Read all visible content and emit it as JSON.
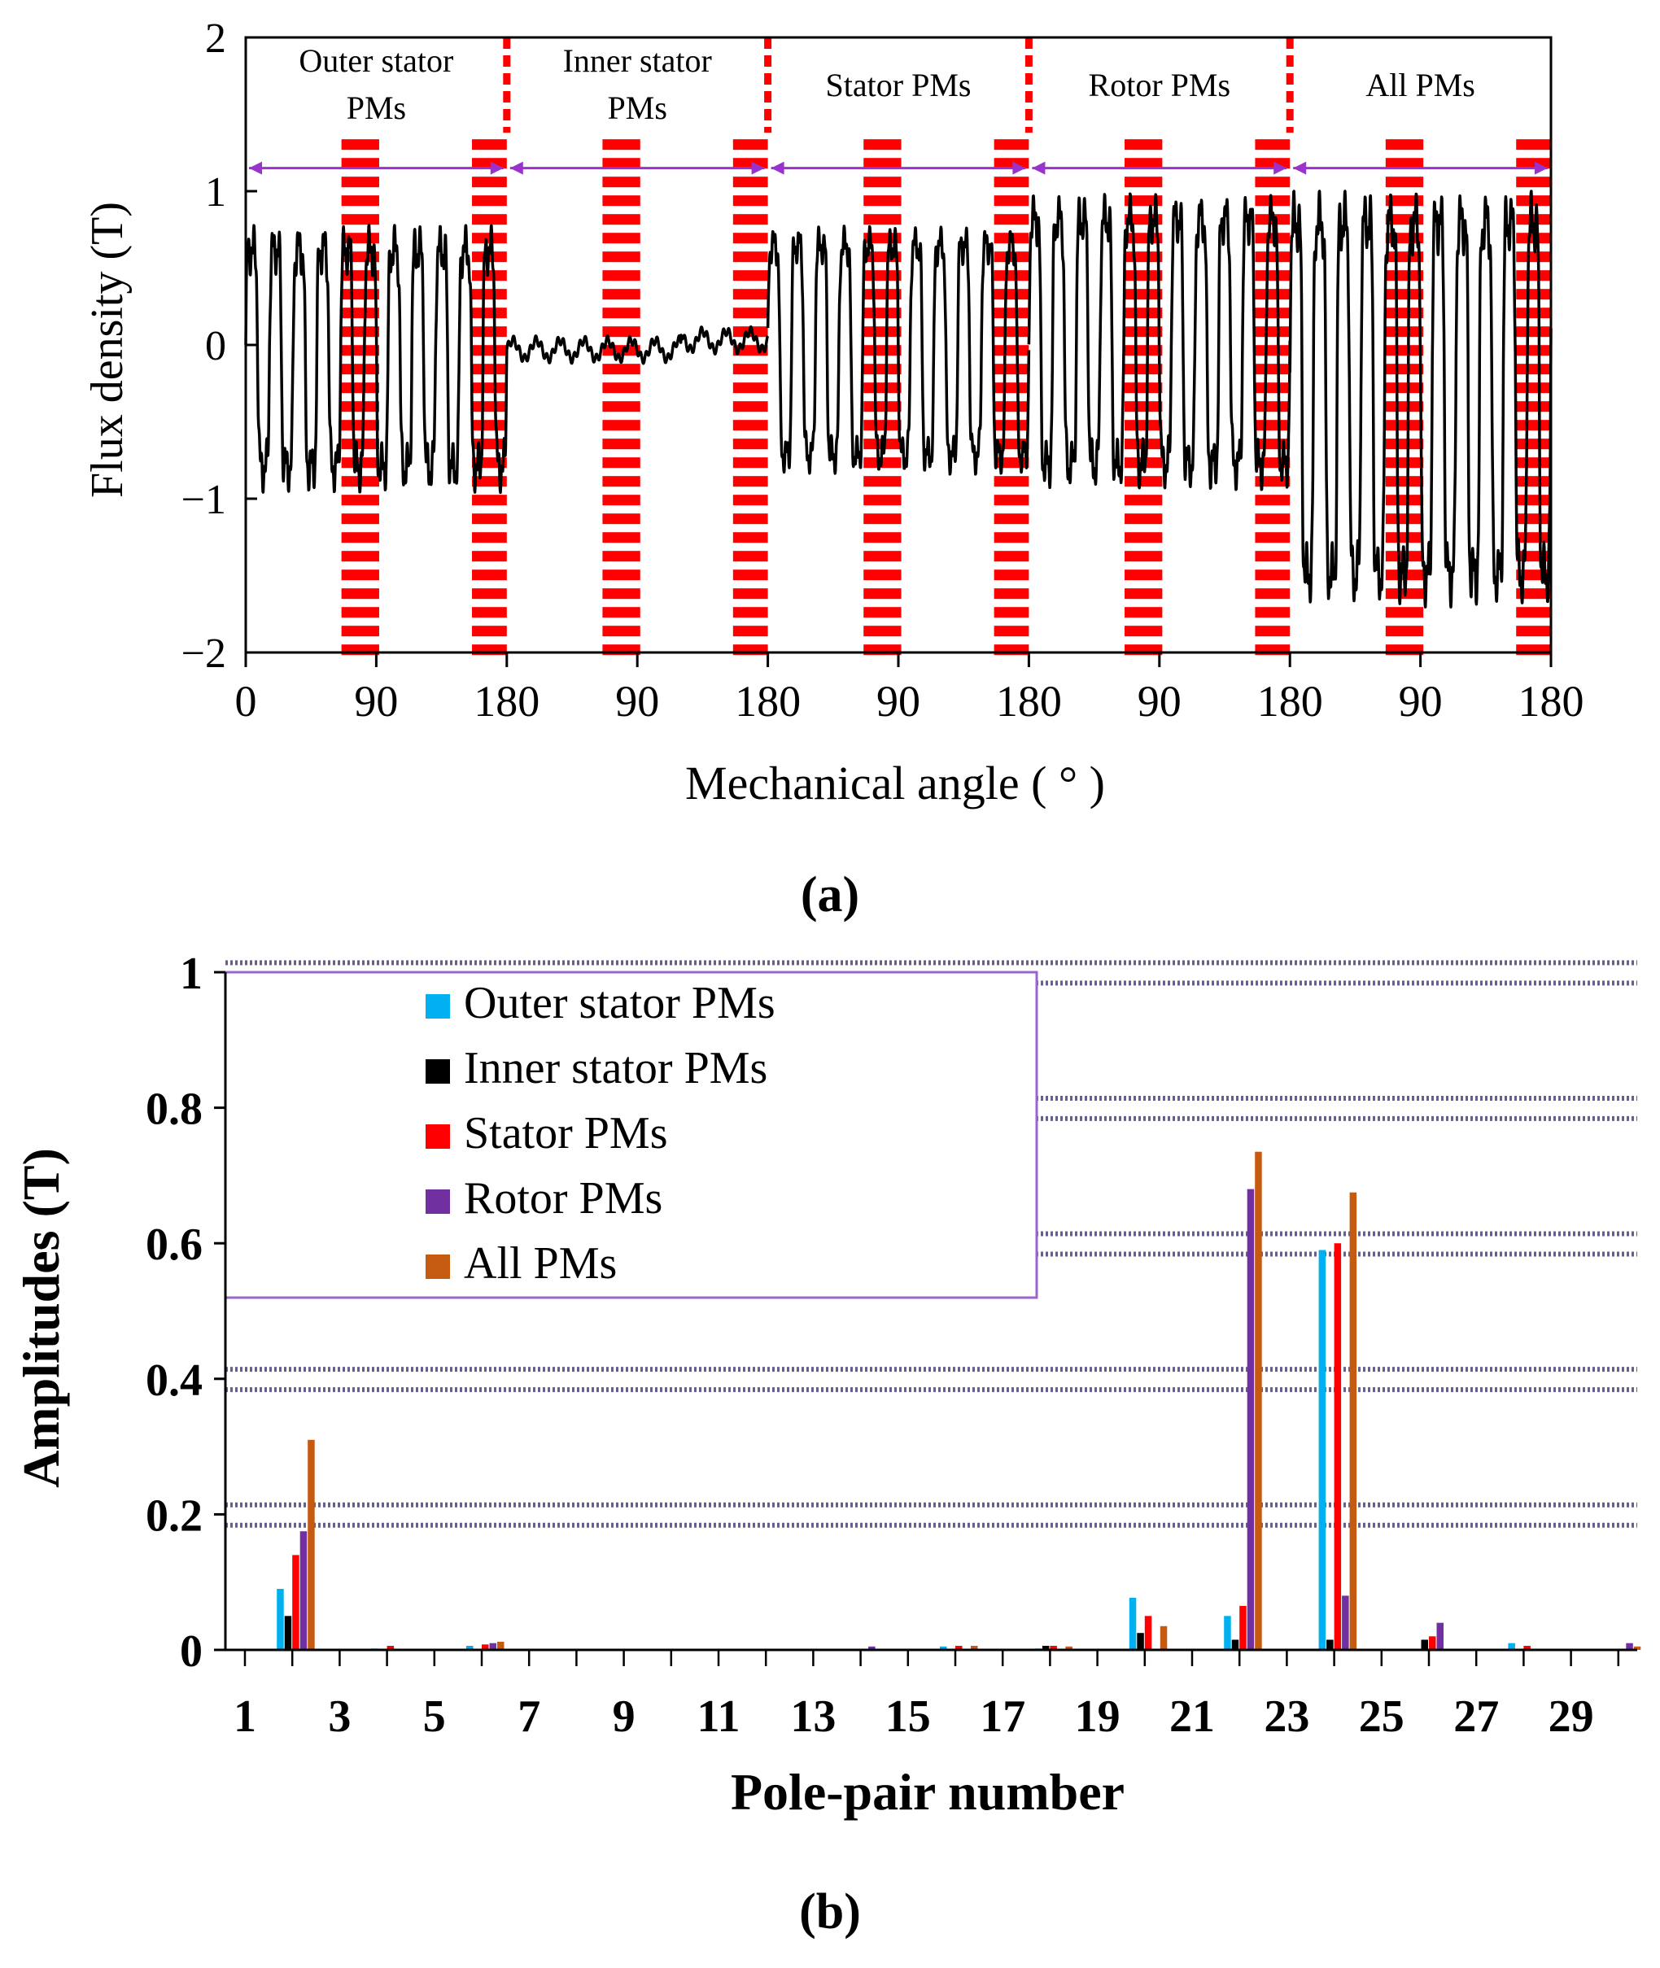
{
  "chart_data": [
    {
      "type": "line",
      "panel_caption": "(a)",
      "xlabel": "Mechanical angle ( ° )",
      "ylabel": "Flux density (T)",
      "ylim": [
        -2,
        2
      ],
      "yticks": [
        "2",
        "1",
        "0",
        "−1",
        "−2"
      ],
      "xlim": [
        0,
        900
      ],
      "xtick_values": [
        0,
        90,
        180,
        270,
        360,
        450,
        540,
        630,
        720,
        810,
        900
      ],
      "xtick_labels": [
        "0",
        "90",
        "180",
        "90",
        "180",
        "90",
        "180",
        "90",
        "180",
        "90",
        "180"
      ],
      "sections": [
        {
          "label_line1": "Outer stator",
          "label_line2": "PMs",
          "range": [
            0,
            180
          ],
          "amp": 0.62,
          "neg_amp": 0.8,
          "noise": 0.2
        },
        {
          "label_line1": "Inner stator",
          "label_line2": "PMs",
          "range": [
            180,
            360
          ],
          "amp": 0.06,
          "neg_amp": 0.06,
          "noise": 0.03
        },
        {
          "label_line1": "Stator PMs",
          "label_line2": "",
          "range": [
            360,
            540
          ],
          "amp": 0.65,
          "neg_amp": 0.72,
          "noise": 0.15
        },
        {
          "label_line1": "Rotor PMs",
          "label_line2": "",
          "range": [
            540,
            720
          ],
          "amp": 0.82,
          "neg_amp": 0.78,
          "noise": 0.2
        },
        {
          "label_line1": "All PMs",
          "label_line2": "",
          "range": [
            720,
            900
          ],
          "amp": 0.8,
          "neg_amp": 1.5,
          "noise": 0.25
        }
      ],
      "pm_regions": [
        [
          66,
          92
        ],
        [
          156,
          180
        ],
        [
          246,
          272
        ],
        [
          336,
          360
        ],
        [
          426,
          452
        ],
        [
          516,
          540
        ],
        [
          606,
          632
        ],
        [
          696,
          720
        ],
        [
          786,
          812
        ],
        [
          876,
          900
        ]
      ],
      "arrow_y": 1.15,
      "pm_region_top": 1.38,
      "series_color": "#000000",
      "region_color": "#ff0000",
      "arrow_color": "#9933cc"
    },
    {
      "type": "bar",
      "panel_caption": "(b)",
      "xlabel": "Pole-pair number",
      "ylabel": "Amplitudes (T)",
      "ylim": [
        0,
        1
      ],
      "yticks": [
        "0",
        "0.2",
        "0.4",
        "0.6",
        "0.8",
        "1"
      ],
      "xtick_labels": [
        "1",
        "3",
        "5",
        "7",
        "9",
        "11",
        "13",
        "15",
        "17",
        "19",
        "21",
        "23",
        "25",
        "27",
        "29"
      ],
      "categories": [
        2,
        4,
        6,
        8,
        10,
        12,
        14,
        16,
        18,
        20,
        22,
        24,
        26,
        28,
        30
      ],
      "series": [
        {
          "name": "Outer stator PMs",
          "color": "#00b0f0",
          "values": [
            0.09,
            0.002,
            0.006,
            0,
            0,
            0,
            0,
            0.005,
            0.002,
            0.077,
            0.05,
            0.59,
            0,
            0.01,
            0
          ]
        },
        {
          "name": "Inner stator PMs",
          "color": "#000000",
          "values": [
            0.05,
            0,
            0,
            0,
            0,
            0,
            0,
            0,
            0.006,
            0.025,
            0.015,
            0.015,
            0.015,
            0,
            0
          ]
        },
        {
          "name": "Stator PMs",
          "color": "#ff0000",
          "values": [
            0.14,
            0.006,
            0.008,
            0,
            0,
            0,
            0,
            0.006,
            0.006,
            0.05,
            0.065,
            0.6,
            0.02,
            0.006,
            0
          ]
        },
        {
          "name": "Rotor PMs",
          "color": "#7030a0",
          "values": [
            0.175,
            0,
            0.01,
            0,
            0,
            0,
            0.005,
            0,
            0,
            0,
            0.68,
            0.08,
            0.04,
            0,
            0.01
          ]
        },
        {
          "name": "All PMs",
          "color": "#c55a11",
          "values": [
            0.31,
            0,
            0.012,
            0,
            0,
            0,
            0,
            0.006,
            0.005,
            0.035,
            0.735,
            0.675,
            0,
            0,
            0.005
          ]
        }
      ],
      "legend_position": "upper-left",
      "legend_border_color": "#9966cc",
      "grid_color": "#6a5a9a"
    }
  ]
}
